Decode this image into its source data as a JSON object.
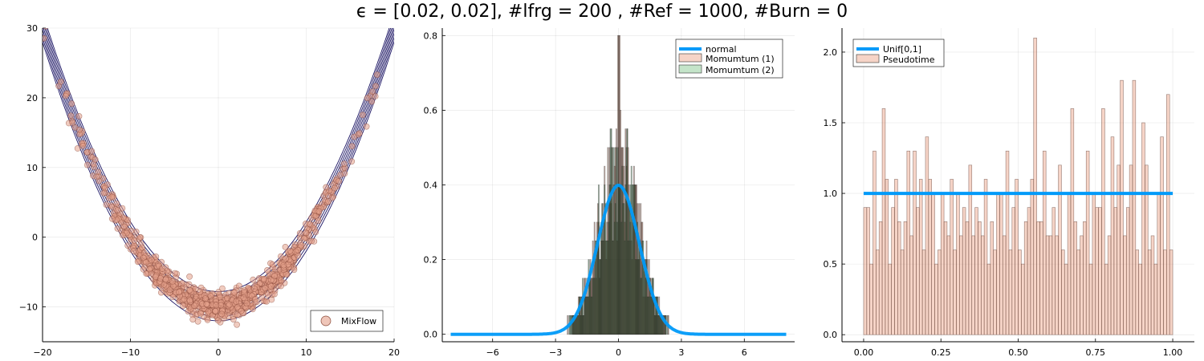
{
  "title": "ϵ = [0.02, 0.02], #lfrg = 200 , #Ref = 1000, #Burn = 0",
  "chart_data": [
    {
      "type": "scatter",
      "xlim": [
        -20,
        20
      ],
      "ylim": [
        -15,
        30
      ],
      "xticks": [
        "−20",
        "−10",
        "0",
        "10",
        "20"
      ],
      "yticks": [
        "−10",
        "0",
        "10",
        "20",
        "30"
      ],
      "grid": true,
      "legend_position": "bottom-right",
      "series": [
        {
          "name": "MixFlow",
          "kind": "scatter",
          "color": "#e4a08a",
          "relation": "y = 0.1*x^2 - 10 + noise",
          "noise_sd": 1.0,
          "n_points": 1000
        }
      ],
      "contours": {
        "color": "#1b1464",
        "levels": [
          -2,
          -1.4,
          -0.8,
          -0.2,
          0.4,
          1.0,
          1.6,
          2.2
        ]
      }
    },
    {
      "type": "bar",
      "xlim": [
        -8.4,
        8.4
      ],
      "ylim": [
        -0.02,
        0.82
      ],
      "xticks": [
        "−6",
        "−3",
        "0",
        "3",
        "6"
      ],
      "yticks": [
        "0.0",
        "0.2",
        "0.4",
        "0.6",
        "0.8"
      ],
      "grid": true,
      "legend_position": "top-right",
      "series": [
        {
          "name": "normal",
          "kind": "line",
          "color": "#009af9",
          "x_range": [
            -8,
            8
          ],
          "mean": 0,
          "sd": 1
        },
        {
          "name": "Momumtum (1)",
          "kind": "histogram",
          "color": "#e26f46",
          "fill_alpha": 0.3,
          "x_range": [
            -3.4,
            3.4
          ],
          "max_height": 0.8
        },
        {
          "name": "Momumtum (2)",
          "kind": "histogram",
          "color": "#3da44d",
          "fill_alpha": 0.3,
          "x_range": [
            -3.4,
            3.4
          ],
          "max_height": 0.8
        }
      ]
    },
    {
      "type": "bar",
      "xlim": [
        -0.07,
        1.07
      ],
      "ylim": [
        -0.05,
        2.17
      ],
      "xticks": [
        "0.00",
        "0.25",
        "0.50",
        "0.75",
        "1.00"
      ],
      "yticks": [
        "0.0",
        "0.5",
        "1.0",
        "1.5",
        "2.0"
      ],
      "grid": true,
      "legend_position": "top-left",
      "series": [
        {
          "name": "Unif[0,1]",
          "kind": "line",
          "color": "#009af9",
          "x": [
            0,
            1
          ],
          "y": [
            1.0,
            1.0
          ]
        },
        {
          "name": "Pseudotime",
          "kind": "histogram",
          "color": "#e26f46",
          "fill_alpha": 0.3,
          "bin_width": 0.01,
          "x_start": 0,
          "values": [
            0.9,
            0.9,
            0.5,
            1.3,
            0.6,
            0.8,
            1.6,
            1.1,
            0.5,
            0.9,
            1.1,
            0.8,
            0.6,
            0.8,
            1.3,
            0.7,
            1.3,
            0.9,
            1.1,
            0.6,
            1.4,
            1.1,
            1.0,
            0.5,
            0.6,
            1.0,
            0.8,
            0.7,
            1.1,
            0.6,
            1.0,
            0.7,
            0.9,
            0.8,
            1.2,
            0.7,
            0.9,
            0.8,
            0.7,
            1.1,
            0.5,
            0.8,
            0.6,
            1.0,
            1.0,
            0.7,
            1.3,
            0.6,
            0.9,
            1.1,
            0.6,
            0.5,
            0.8,
            0.9,
            1.1,
            2.1,
            0.8,
            0.8,
            1.3,
            0.7,
            0.7,
            0.9,
            0.7,
            1.2,
            0.6,
            0.5,
            1.0,
            1.6,
            0.8,
            0.6,
            0.7,
            0.8,
            1.3,
            0.5,
            1.0,
            0.9,
            0.9,
            1.6,
            0.5,
            0.7,
            1.4,
            0.9,
            1.2,
            1.8,
            0.7,
            0.9,
            1.2,
            1.8,
            0.6,
            0.5,
            1.5,
            1.2,
            0.6,
            0.7,
            0.5,
            1.0,
            1.4,
            0.6,
            1.7,
            0.6
          ]
        }
      ]
    }
  ]
}
